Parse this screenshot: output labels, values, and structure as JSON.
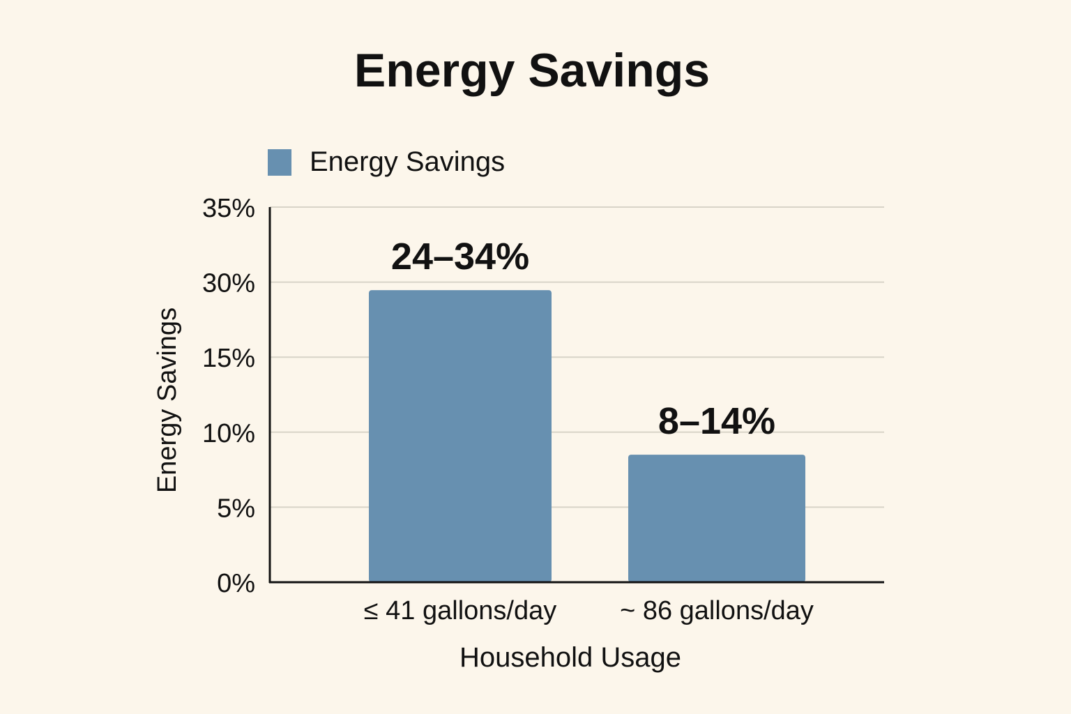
{
  "chart_data": {
    "type": "bar",
    "title": "Energy Savings",
    "xlabel": "Household Usage",
    "ylabel": "Energy Savings",
    "categories": [
      "≤ 41 gallons/day",
      "~ 86 gallons/day"
    ],
    "series": [
      {
        "name": "Energy Savings",
        "values": [
          28.4,
          8.5
        ],
        "data_labels": [
          "24–34%",
          "8–14%"
        ]
      }
    ],
    "y_ticks": [
      0,
      5,
      10,
      15,
      30,
      35
    ],
    "y_tick_labels": [
      "0%",
      "5%",
      "10%",
      "15%",
      "30%",
      "35%"
    ],
    "ylim": [
      0,
      35
    ],
    "grid": true,
    "legend": "top-left",
    "colors": {
      "bar": "#6790b0",
      "grid": "#d8d4c8",
      "axis": "#111111",
      "background": "#fcf6eb"
    }
  }
}
